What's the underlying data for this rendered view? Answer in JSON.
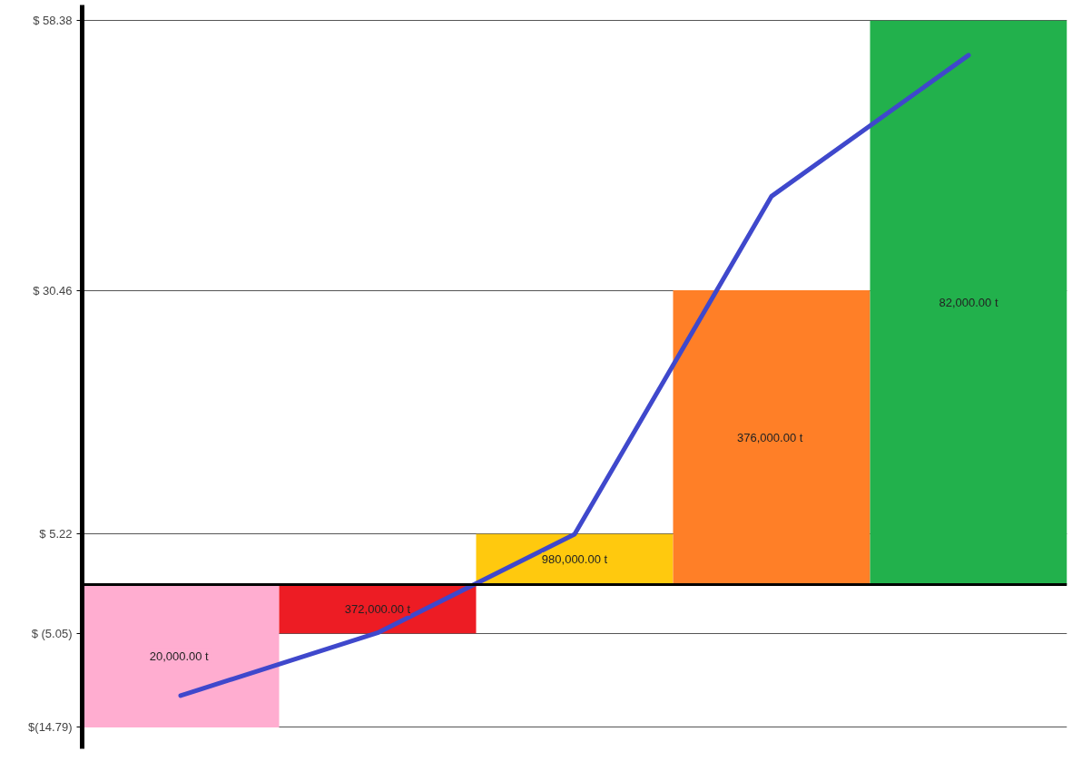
{
  "chart_data": {
    "type": "bar",
    "categories": [
      null,
      null,
      null,
      null,
      null
    ],
    "values": [
      -14.79,
      -5.05,
      5.22,
      30.46,
      58.38
    ],
    "colors": [
      "#ffadd0",
      "#ed1c24",
      "#ffc90e",
      "#ff7f27",
      "#22b14c"
    ],
    "series": [
      {
        "type": "line",
        "color": "#3f48cc",
        "values": [
          -11.5,
          -5.0,
          5.2,
          40.2,
          54.8
        ]
      }
    ],
    "annotations": [
      "20,000.00  t",
      "372,000.00 t",
      "980,000.00 t",
      "376,000.00  t",
      "82,000.00 t"
    ],
    "ylim": [
      -17,
      60
    ],
    "yticks": [
      {
        "value": -14.79,
        "label": "$(14.79)"
      },
      {
        "value": -5.05,
        "label": "$ (5.05)"
      },
      {
        "value": 5.22,
        "label": "$ 5.22"
      },
      {
        "value": 30.46,
        "label": "$ 30.46"
      },
      {
        "value": 58.38,
        "label": "$ 58.38"
      }
    ],
    "ref_lines": [
      {
        "axis": "y",
        "value": 0,
        "color": "#000000"
      }
    ],
    "grid": "y",
    "tick_labels": "y"
  }
}
